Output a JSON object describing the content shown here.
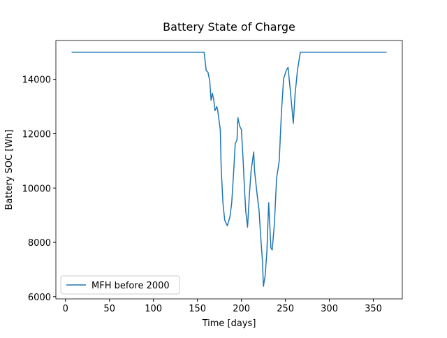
{
  "chart_data": {
    "type": "line",
    "title": "Battery State of Charge",
    "xlabel": "Time [days]",
    "ylabel": "Battery SOC [Wh]",
    "x": [
      7,
      157.6,
      160,
      162,
      164,
      165.5,
      167,
      168.6,
      170,
      172,
      173,
      176,
      177,
      179,
      181,
      184,
      187,
      189,
      191,
      193,
      195,
      196,
      198,
      200,
      202,
      203.5,
      205,
      207,
      209,
      211,
      214,
      215,
      218,
      220,
      222,
      224,
      225,
      227,
      229,
      231,
      232,
      233.5,
      235,
      237.5,
      240,
      243,
      245.5,
      248,
      251,
      253,
      255.7,
      259,
      261,
      263.7,
      267,
      365
    ],
    "series": [
      {
        "name": "MFH before 2000",
        "color": "#1f77b4",
        "values": [
          15000,
          15000,
          14330,
          14260,
          13950,
          13230,
          13490,
          13230,
          12850,
          13000,
          12870,
          12150,
          10740,
          9460,
          8820,
          8610,
          8950,
          9460,
          10490,
          11640,
          11770,
          12590,
          12280,
          12150,
          11000,
          9970,
          9130,
          8560,
          9720,
          10620,
          11330,
          10620,
          9720,
          9200,
          8180,
          7280,
          6380,
          6770,
          7670,
          9460,
          8820,
          7800,
          7720,
          8690,
          10360,
          11000,
          12790,
          14030,
          14330,
          14440,
          13560,
          12380,
          13440,
          14330,
          15000,
          15000
        ]
      }
    ],
    "xlim": [
      -10.9,
      382.9
    ],
    "xticks": [
      0,
      50,
      100,
      150,
      200,
      250,
      300,
      350
    ],
    "ylim": [
      5918,
      15432
    ],
    "yticks": [
      6000,
      8000,
      10000,
      12000,
      14000
    ],
    "legend": "lower left",
    "grid": false
  }
}
